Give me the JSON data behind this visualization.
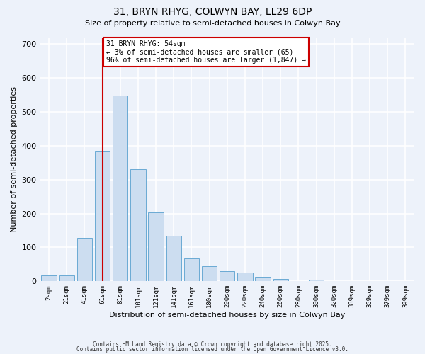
{
  "title": "31, BRYN RHYG, COLWYN BAY, LL29 6DP",
  "subtitle": "Size of property relative to semi-detached houses in Colwyn Bay",
  "xlabel": "Distribution of semi-detached houses by size in Colwyn Bay",
  "ylabel": "Number of semi-detached properties",
  "bar_labels": [
    "2sqm",
    "21sqm",
    "41sqm",
    "61sqm",
    "81sqm",
    "101sqm",
    "121sqm",
    "141sqm",
    "161sqm",
    "180sqm",
    "200sqm",
    "220sqm",
    "240sqm",
    "260sqm",
    "280sqm",
    "300sqm",
    "320sqm",
    "339sqm",
    "359sqm",
    "379sqm",
    "399sqm"
  ],
  "bar_heights": [
    18,
    18,
    128,
    385,
    548,
    330,
    203,
    135,
    68,
    44,
    29,
    25,
    14,
    6,
    1,
    4,
    0,
    0,
    0,
    0,
    0
  ],
  "bar_color": "#ccddf0",
  "bar_edge_color": "#6aaad4",
  "vline_bin_index": 3,
  "ylim": [
    0,
    720
  ],
  "yticks": [
    0,
    100,
    200,
    300,
    400,
    500,
    600,
    700
  ],
  "annotation_title": "31 BRYN RHYG: 54sqm",
  "annotation_line1": "← 3% of semi-detached houses are smaller (65)",
  "annotation_line2": "96% of semi-detached houses are larger (1,847) →",
  "annotation_box_color": "#ffffff",
  "annotation_box_edge": "#cc0000",
  "vline_color": "#cc0000",
  "background_color": "#edf2fa",
  "grid_color": "#ffffff",
  "footer1": "Contains HM Land Registry data © Crown copyright and database right 2025.",
  "footer2": "Contains public sector information licensed under the Open Government Licence v3.0."
}
